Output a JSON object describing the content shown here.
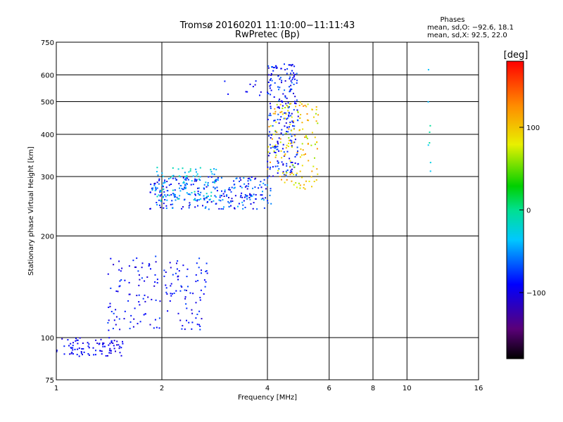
{
  "chart_data": {
    "type": "scatter",
    "title": "Tromsø 20160201 11:10:00−11:11:43",
    "subtitle": "RwPretec (Bp)",
    "xlabel": "Frequency [MHz]",
    "ylabel": "Stationary phase Virtual Height [km]",
    "x_scale": "log",
    "y_scale": "log",
    "xlim": [
      1,
      16
    ],
    "ylim": [
      75,
      750
    ],
    "x_ticks": [
      1,
      2,
      4,
      6,
      8,
      10,
      16
    ],
    "x_tick_labels": [
      "1",
      "2",
      "4",
      "6",
      "8",
      "10",
      "16"
    ],
    "y_ticks": [
      75,
      100,
      200,
      300,
      400,
      500,
      600,
      750
    ],
    "y_tick_labels": [
      "75",
      "100",
      "200",
      "300",
      "400",
      "500",
      "600",
      "750"
    ],
    "grid": true,
    "stats": {
      "header": "Phases",
      "line_o": "mean, sd,O: −92.6, 18.1",
      "line_x": "mean, sd,X:  92.5, 22.0"
    },
    "colorbar": {
      "label": "[deg]",
      "range": [
        -180,
        180
      ],
      "ticks": [
        100,
        0,
        -100
      ],
      "tick_labels": [
        "100",
        "0",
        "−100"
      ],
      "colormap": "rainbow"
    },
    "clusters": [
      {
        "x": [
          1.0,
          1.55
        ],
        "y": [
          88,
          100
        ],
        "phase": [
          -110,
          -80
        ],
        "n": 90
      },
      {
        "x": [
          1.4,
          2.7
        ],
        "y": [
          105,
          175
        ],
        "phase": [
          -110,
          -70
        ],
        "n": 170
      },
      {
        "x": [
          1.85,
          4.1
        ],
        "y": [
          240,
          300
        ],
        "phase": [
          -110,
          -40
        ],
        "n": 280
      },
      {
        "x": [
          1.9,
          2.9
        ],
        "y": [
          255,
          320
        ],
        "phase": [
          -60,
          0
        ],
        "n": 80
      },
      {
        "x": [
          4.0,
          4.9
        ],
        "y": [
          300,
          650
        ],
        "phase": [
          -110,
          -60
        ],
        "n": 230
      },
      {
        "x": [
          4.0,
          5.6
        ],
        "y": [
          275,
          500
        ],
        "phase": [
          60,
          130
        ],
        "n": 150
      },
      {
        "x": [
          3.0,
          4.1
        ],
        "y": [
          520,
          580
        ],
        "phase": [
          -110,
          -80
        ],
        "n": 12
      },
      {
        "x": [
          11.5,
          11.7
        ],
        "y": [
          300,
          650
        ],
        "phase": [
          -40,
          0
        ],
        "n": 8
      }
    ]
  }
}
